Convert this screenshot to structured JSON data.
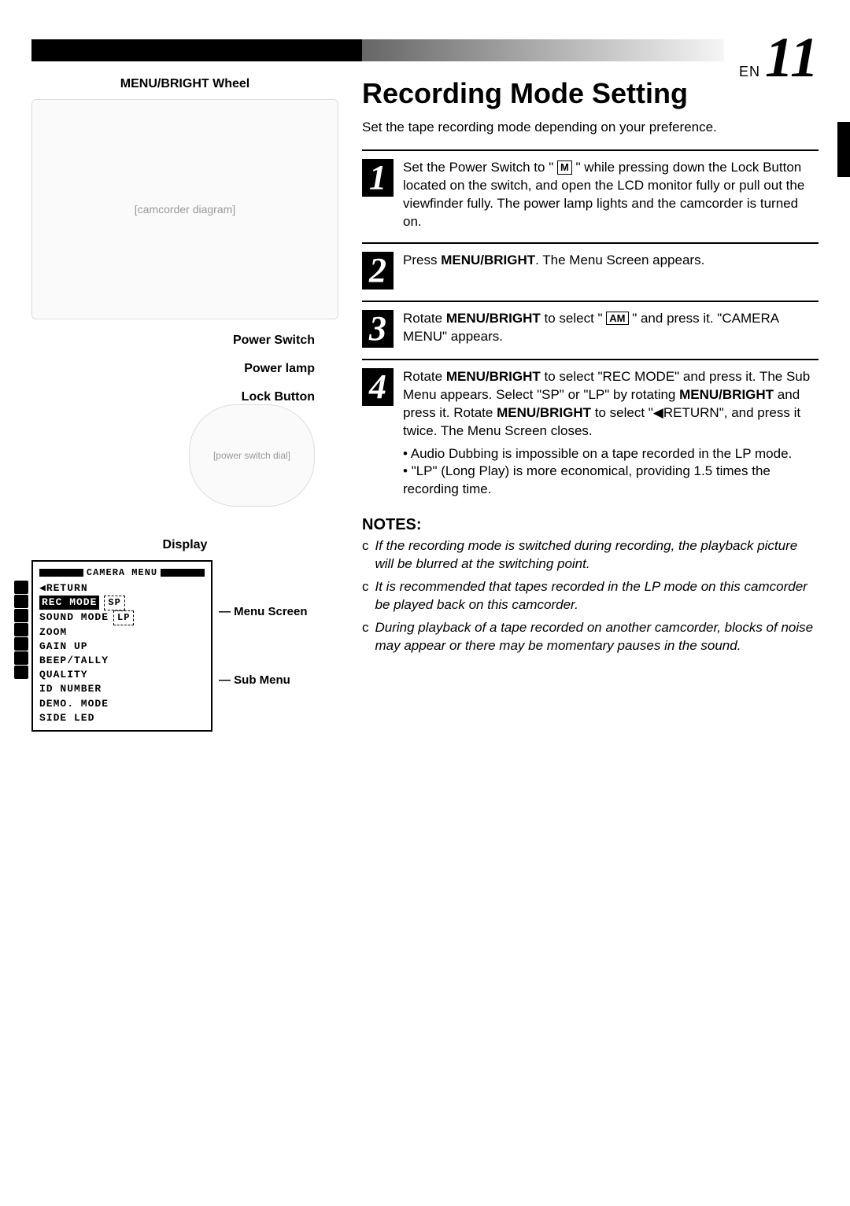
{
  "page": {
    "lang": "EN",
    "number": "11"
  },
  "left": {
    "wheel_label": "MENU/BRIGHT Wheel",
    "power_switch_label": "Power Switch",
    "power_lamp_label": "Power lamp",
    "lock_button_label": "Lock Button",
    "display_label": "Display",
    "callouts": {
      "menu_screen": "Menu Screen",
      "sub_menu": "Sub Menu"
    },
    "camera_diagram_placeholder": "[camcorder diagram]",
    "switch_diagram_placeholder": "[power switch dial]"
  },
  "menu": {
    "title": "CAMERA MENU",
    "return": "◀RETURN",
    "items": [
      {
        "label": "REC MODE",
        "selected": true,
        "badge": "SP"
      },
      {
        "label": "SOUND MODE",
        "badge": "LP"
      },
      {
        "label": "ZOOM"
      },
      {
        "label": "GAIN UP"
      },
      {
        "label": "BEEP/TALLY"
      },
      {
        "label": "QUALITY"
      },
      {
        "label": "ID NUMBER"
      },
      {
        "label": "DEMO. MODE"
      },
      {
        "label": "SIDE LED"
      }
    ]
  },
  "section": {
    "title": "Recording Mode Setting",
    "intro": "Set the tape recording mode depending on your preference."
  },
  "steps": {
    "s1": {
      "parts": [
        "Set the Power Switch to \" ",
        "M",
        " \" while pressing down the Lock Button located on the switch, and open the LCD monitor fully or pull out the viewfinder fully. The power lamp lights and the camcorder is turned on."
      ]
    },
    "s2": {
      "a": "Press ",
      "b": "MENU/BRIGHT",
      "c": ". The Menu Screen appears."
    },
    "s3": {
      "a": "Rotate ",
      "b": "MENU/BRIGHT",
      "c": " to select \" ",
      "icon": "AM",
      "d": " \" and press it. \"CAMERA MENU\" appears."
    },
    "s4": {
      "a": "Rotate ",
      "b": "MENU/BRIGHT",
      "c": " to select \"REC MODE\" and press it. The Sub Menu appears. Select \"SP\" or \"LP\" by rotating ",
      "d": "MENU/BRIGHT",
      "e": " and press it. Rotate ",
      "f": "MENU/BRIGHT",
      "g": " to select \"◀RETURN\", and press it twice. The Menu Screen closes.",
      "bullets": [
        "Audio Dubbing is impossible on a tape recorded in the LP mode.",
        "\"LP\" (Long Play) is more economical, providing 1.5 times the recording time."
      ]
    }
  },
  "notes": {
    "title": "NOTES:",
    "items": [
      "If the recording mode is switched during recording, the playback picture will be blurred at the switching point.",
      "It is recommended that tapes recorded in the LP mode on this camcorder be played back on this camcorder.",
      "During playback of a tape recorded on another camcorder, blocks of noise may appear or there may be momentary pauses in the sound."
    ]
  }
}
